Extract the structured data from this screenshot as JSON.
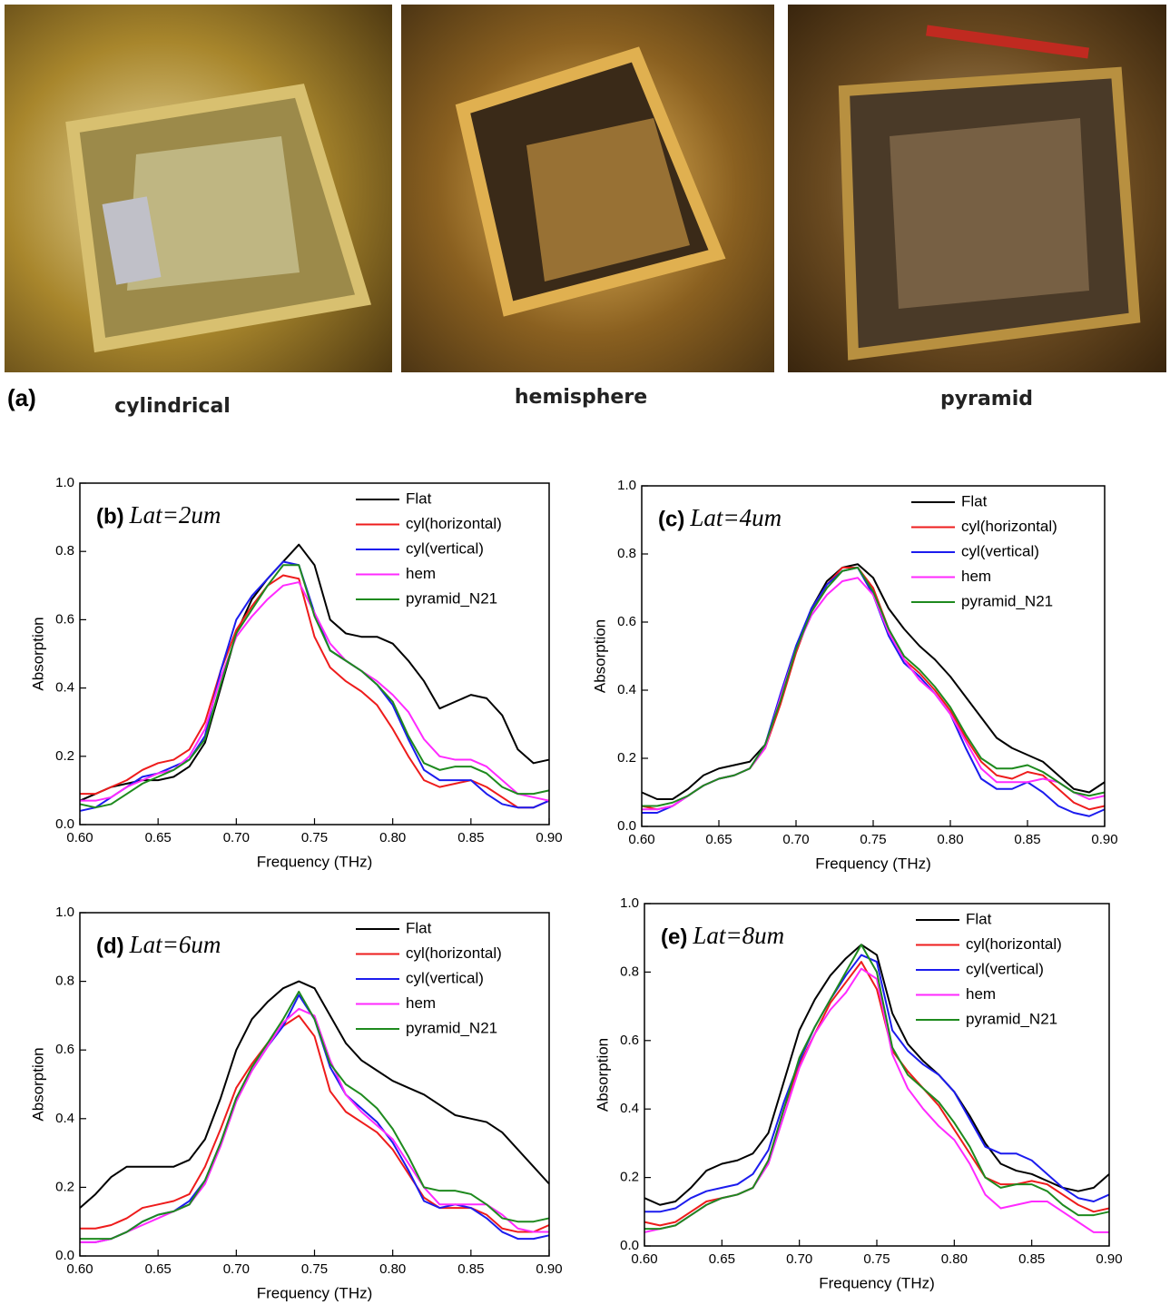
{
  "panel_a": {
    "label": "(a)",
    "captions": [
      "cylindrical",
      "hemisphere",
      "pyramid"
    ]
  },
  "chart_data": [
    {
      "type": "line",
      "panel_label": "(b)",
      "title": "Lat=2um",
      "xlabel": "Frequency (THz)",
      "ylabel": "Absorption",
      "xlim": [
        0.6,
        0.9
      ],
      "ylim": [
        0,
        1
      ],
      "legend": "upper right",
      "xticks": [
        {
          "value": 0.6,
          "label": "0.60"
        },
        0.65,
        {
          "value": 0.7,
          "label": "0.70"
        },
        0.75,
        {
          "value": 0.8,
          "label": "0.80"
        },
        0.85,
        {
          "value": 0.9,
          "label": "0.90"
        }
      ],
      "yticks": [
        {
          "value": 0,
          "label": "0.0"
        },
        0.2,
        0.4,
        0.6,
        0.8,
        {
          "value": 1,
          "label": "1.0"
        }
      ],
      "x": [
        0.6,
        0.61,
        0.62,
        0.63,
        0.64,
        0.65,
        0.66,
        0.67,
        0.68,
        0.69,
        0.7,
        0.71,
        0.72,
        0.73,
        0.74,
        0.75,
        0.76,
        0.77,
        0.78,
        0.79,
        0.8,
        0.81,
        0.82,
        0.83,
        0.84,
        0.85,
        0.86,
        0.87,
        0.88,
        0.89,
        0.9
      ],
      "series": [
        {
          "name": "Flat",
          "color": "#000000",
          "values": [
            0.07,
            0.09,
            0.11,
            0.12,
            0.13,
            0.13,
            0.14,
            0.17,
            0.24,
            0.4,
            0.56,
            0.66,
            0.72,
            0.77,
            0.82,
            0.76,
            0.6,
            0.56,
            0.55,
            0.55,
            0.53,
            0.48,
            0.42,
            0.34,
            0.36,
            0.38,
            0.37,
            0.32,
            0.22,
            0.18,
            0.19
          ]
        },
        {
          "name": "cyl(horizontal)",
          "color": "#ee1c1c",
          "values": [
            0.09,
            0.09,
            0.11,
            0.13,
            0.16,
            0.18,
            0.19,
            0.22,
            0.3,
            0.45,
            0.57,
            0.64,
            0.7,
            0.73,
            0.72,
            0.55,
            0.46,
            0.42,
            0.39,
            0.35,
            0.28,
            0.2,
            0.13,
            0.11,
            0.12,
            0.13,
            0.11,
            0.08,
            0.05,
            0.05,
            0.07
          ]
        },
        {
          "name": "cyl(vertical)",
          "color": "#1c1cee",
          "values": [
            0.04,
            0.05,
            0.08,
            0.11,
            0.14,
            0.15,
            0.17,
            0.19,
            0.26,
            0.45,
            0.6,
            0.67,
            0.72,
            0.77,
            0.76,
            0.62,
            0.51,
            0.48,
            0.45,
            0.41,
            0.35,
            0.25,
            0.16,
            0.13,
            0.13,
            0.13,
            0.09,
            0.06,
            0.05,
            0.05,
            0.07
          ]
        },
        {
          "name": "hem",
          "color": "#ff2aff",
          "values": [
            0.07,
            0.07,
            0.08,
            0.11,
            0.13,
            0.15,
            0.16,
            0.2,
            0.28,
            0.43,
            0.55,
            0.61,
            0.66,
            0.7,
            0.71,
            0.62,
            0.53,
            0.48,
            0.45,
            0.42,
            0.38,
            0.33,
            0.25,
            0.2,
            0.19,
            0.19,
            0.17,
            0.13,
            0.09,
            0.08,
            0.07
          ]
        },
        {
          "name": "pyramid_N21",
          "color": "#1e8a1e",
          "values": [
            0.06,
            0.05,
            0.06,
            0.09,
            0.12,
            0.14,
            0.16,
            0.19,
            0.25,
            0.41,
            0.56,
            0.63,
            0.7,
            0.76,
            0.76,
            0.61,
            0.51,
            0.48,
            0.45,
            0.41,
            0.36,
            0.26,
            0.18,
            0.16,
            0.17,
            0.17,
            0.15,
            0.11,
            0.09,
            0.09,
            0.1
          ]
        }
      ]
    },
    {
      "type": "line",
      "panel_label": "(c)",
      "title": "Lat=4um",
      "xlabel": "Frequency (THz)",
      "ylabel": "Absorption",
      "xlim": [
        0.6,
        0.9
      ],
      "ylim": [
        0,
        1
      ],
      "legend": "upper right",
      "xticks": [
        {
          "value": 0.6,
          "label": "0.60"
        },
        0.65,
        {
          "value": 0.7,
          "label": "0.70"
        },
        0.75,
        {
          "value": 0.8,
          "label": "0.80"
        },
        0.85,
        {
          "value": 0.9,
          "label": "0.90"
        }
      ],
      "yticks": [
        {
          "value": 0,
          "label": "0.0"
        },
        0.2,
        0.4,
        0.6,
        0.8,
        {
          "value": 1,
          "label": "1.0"
        }
      ],
      "x": [
        0.6,
        0.61,
        0.62,
        0.63,
        0.64,
        0.65,
        0.66,
        0.67,
        0.68,
        0.69,
        0.7,
        0.71,
        0.72,
        0.73,
        0.74,
        0.75,
        0.76,
        0.77,
        0.78,
        0.79,
        0.8,
        0.81,
        0.82,
        0.83,
        0.84,
        0.85,
        0.86,
        0.87,
        0.88,
        0.89,
        0.9
      ],
      "series": [
        {
          "name": "Flat",
          "color": "#000000",
          "values": [
            0.1,
            0.08,
            0.08,
            0.11,
            0.15,
            0.17,
            0.18,
            0.19,
            0.24,
            0.37,
            0.52,
            0.64,
            0.72,
            0.76,
            0.77,
            0.73,
            0.64,
            0.58,
            0.53,
            0.49,
            0.44,
            0.38,
            0.32,
            0.26,
            0.23,
            0.21,
            0.19,
            0.15,
            0.11,
            0.1,
            0.13
          ]
        },
        {
          "name": "cyl(horizontal)",
          "color": "#ee1c1c",
          "values": [
            0.06,
            0.05,
            0.06,
            0.09,
            0.12,
            0.14,
            0.15,
            0.17,
            0.23,
            0.36,
            0.51,
            0.63,
            0.71,
            0.76,
            0.76,
            0.7,
            0.58,
            0.49,
            0.45,
            0.4,
            0.34,
            0.26,
            0.19,
            0.15,
            0.14,
            0.16,
            0.15,
            0.11,
            0.07,
            0.05,
            0.06
          ]
        },
        {
          "name": "cyl(vertical)",
          "color": "#1c1cee",
          "values": [
            0.04,
            0.04,
            0.06,
            0.09,
            0.12,
            0.14,
            0.15,
            0.17,
            0.24,
            0.39,
            0.53,
            0.64,
            0.71,
            0.75,
            0.76,
            0.68,
            0.56,
            0.48,
            0.44,
            0.39,
            0.33,
            0.23,
            0.14,
            0.11,
            0.11,
            0.13,
            0.1,
            0.06,
            0.04,
            0.03,
            0.05
          ]
        },
        {
          "name": "hem",
          "color": "#ff2aff",
          "values": [
            0.05,
            0.05,
            0.06,
            0.09,
            0.12,
            0.14,
            0.15,
            0.17,
            0.23,
            0.38,
            0.52,
            0.62,
            0.68,
            0.72,
            0.73,
            0.68,
            0.57,
            0.49,
            0.43,
            0.39,
            0.33,
            0.25,
            0.17,
            0.13,
            0.13,
            0.13,
            0.14,
            0.13,
            0.1,
            0.08,
            0.09
          ]
        },
        {
          "name": "pyramid_N21",
          "color": "#1e8a1e",
          "values": [
            0.06,
            0.06,
            0.07,
            0.09,
            0.12,
            0.14,
            0.15,
            0.17,
            0.24,
            0.37,
            0.52,
            0.63,
            0.7,
            0.75,
            0.76,
            0.69,
            0.58,
            0.5,
            0.46,
            0.41,
            0.35,
            0.27,
            0.2,
            0.17,
            0.17,
            0.18,
            0.16,
            0.13,
            0.1,
            0.09,
            0.1
          ]
        }
      ]
    },
    {
      "type": "line",
      "panel_label": "(d)",
      "title": "Lat=6um",
      "xlabel": "Frequency (THz)",
      "ylabel": "Absorption",
      "xlim": [
        0.6,
        0.9
      ],
      "ylim": [
        0,
        1
      ],
      "legend": "upper right",
      "xticks": [
        {
          "value": 0.6,
          "label": "0.60"
        },
        0.65,
        {
          "value": 0.7,
          "label": "0.70"
        },
        0.75,
        {
          "value": 0.8,
          "label": "0.80"
        },
        0.85,
        {
          "value": 0.9,
          "label": "0.90"
        }
      ],
      "yticks": [
        {
          "value": 0,
          "label": "0.0"
        },
        0.2,
        0.4,
        0.6,
        0.8,
        {
          "value": 1,
          "label": "1.0"
        }
      ],
      "x": [
        0.6,
        0.61,
        0.62,
        0.63,
        0.64,
        0.65,
        0.66,
        0.67,
        0.68,
        0.69,
        0.7,
        0.71,
        0.72,
        0.73,
        0.74,
        0.75,
        0.76,
        0.77,
        0.78,
        0.79,
        0.8,
        0.81,
        0.82,
        0.83,
        0.84,
        0.85,
        0.86,
        0.87,
        0.88,
        0.89,
        0.9
      ],
      "series": [
        {
          "name": "Flat",
          "color": "#000000",
          "values": [
            0.14,
            0.18,
            0.23,
            0.26,
            0.26,
            0.26,
            0.26,
            0.28,
            0.34,
            0.46,
            0.6,
            0.69,
            0.74,
            0.78,
            0.8,
            0.78,
            0.7,
            0.62,
            0.57,
            0.54,
            0.51,
            0.49,
            0.47,
            0.44,
            0.41,
            0.4,
            0.39,
            0.36,
            0.31,
            0.26,
            0.21
          ]
        },
        {
          "name": "cyl(horizontal)",
          "color": "#ee1c1c",
          "values": [
            0.08,
            0.08,
            0.09,
            0.11,
            0.14,
            0.15,
            0.16,
            0.18,
            0.26,
            0.37,
            0.49,
            0.56,
            0.62,
            0.67,
            0.7,
            0.64,
            0.48,
            0.42,
            0.39,
            0.36,
            0.31,
            0.24,
            0.17,
            0.14,
            0.14,
            0.14,
            0.12,
            0.08,
            0.07,
            0.07,
            0.09
          ]
        },
        {
          "name": "cyl(vertical)",
          "color": "#1c1cee",
          "values": [
            0.04,
            0.04,
            0.05,
            0.07,
            0.1,
            0.12,
            0.13,
            0.16,
            0.22,
            0.33,
            0.46,
            0.54,
            0.61,
            0.67,
            0.76,
            0.69,
            0.55,
            0.47,
            0.43,
            0.39,
            0.33,
            0.25,
            0.16,
            0.14,
            0.15,
            0.14,
            0.11,
            0.07,
            0.05,
            0.05,
            0.06
          ]
        },
        {
          "name": "hem",
          "color": "#ff2aff",
          "values": [
            0.04,
            0.04,
            0.05,
            0.07,
            0.09,
            0.11,
            0.13,
            0.15,
            0.21,
            0.32,
            0.45,
            0.54,
            0.61,
            0.68,
            0.72,
            0.7,
            0.57,
            0.47,
            0.42,
            0.38,
            0.34,
            0.27,
            0.2,
            0.15,
            0.15,
            0.15,
            0.15,
            0.12,
            0.08,
            0.07,
            0.07
          ]
        },
        {
          "name": "pyramid_N21",
          "color": "#1e8a1e",
          "values": [
            0.05,
            0.05,
            0.05,
            0.07,
            0.1,
            0.12,
            0.13,
            0.15,
            0.22,
            0.33,
            0.46,
            0.55,
            0.62,
            0.69,
            0.77,
            0.69,
            0.56,
            0.5,
            0.47,
            0.43,
            0.37,
            0.29,
            0.2,
            0.19,
            0.19,
            0.18,
            0.15,
            0.11,
            0.1,
            0.1,
            0.11
          ]
        }
      ]
    },
    {
      "type": "line",
      "panel_label": "(e)",
      "title": "Lat=8um",
      "xlabel": "Frequency (THz)",
      "ylabel": "Absorption",
      "xlim": [
        0.6,
        0.9
      ],
      "ylim": [
        0,
        1
      ],
      "legend": "upper right",
      "xticks": [
        {
          "value": 0.6,
          "label": "0.60"
        },
        0.65,
        {
          "value": 0.7,
          "label": "0.70"
        },
        0.75,
        {
          "value": 0.8,
          "label": "0.80"
        },
        0.85,
        {
          "value": 0.9,
          "label": "0.90"
        }
      ],
      "yticks": [
        {
          "value": 0,
          "label": "0.0"
        },
        0.2,
        0.4,
        0.6,
        0.8,
        {
          "value": 1,
          "label": "1.0"
        }
      ],
      "x": [
        0.6,
        0.61,
        0.62,
        0.63,
        0.64,
        0.65,
        0.66,
        0.67,
        0.68,
        0.69,
        0.7,
        0.71,
        0.72,
        0.73,
        0.74,
        0.75,
        0.76,
        0.77,
        0.78,
        0.79,
        0.8,
        0.81,
        0.82,
        0.83,
        0.84,
        0.85,
        0.86,
        0.87,
        0.88,
        0.89,
        0.9
      ],
      "series": [
        {
          "name": "Flat",
          "color": "#000000",
          "values": [
            0.14,
            0.12,
            0.13,
            0.17,
            0.22,
            0.24,
            0.25,
            0.27,
            0.33,
            0.48,
            0.63,
            0.72,
            0.79,
            0.84,
            0.88,
            0.85,
            0.68,
            0.59,
            0.54,
            0.5,
            0.45,
            0.38,
            0.3,
            0.24,
            0.22,
            0.21,
            0.19,
            0.17,
            0.16,
            0.17,
            0.21
          ]
        },
        {
          "name": "cyl(horizontal)",
          "color": "#ee1c1c",
          "values": [
            0.07,
            0.06,
            0.07,
            0.1,
            0.13,
            0.14,
            0.15,
            0.17,
            0.25,
            0.4,
            0.53,
            0.62,
            0.71,
            0.77,
            0.83,
            0.75,
            0.57,
            0.51,
            0.46,
            0.41,
            0.34,
            0.27,
            0.2,
            0.18,
            0.18,
            0.19,
            0.18,
            0.15,
            0.12,
            0.1,
            0.11
          ]
        },
        {
          "name": "cyl(vertical)",
          "color": "#1c1cee",
          "values": [
            0.1,
            0.1,
            0.11,
            0.14,
            0.16,
            0.17,
            0.18,
            0.21,
            0.28,
            0.42,
            0.54,
            0.64,
            0.72,
            0.79,
            0.85,
            0.83,
            0.63,
            0.57,
            0.53,
            0.5,
            0.45,
            0.37,
            0.29,
            0.27,
            0.27,
            0.25,
            0.21,
            0.17,
            0.14,
            0.13,
            0.15
          ]
        },
        {
          "name": "hem",
          "color": "#ff2aff",
          "values": [
            0.04,
            0.05,
            0.06,
            0.09,
            0.12,
            0.14,
            0.15,
            0.17,
            0.24,
            0.38,
            0.52,
            0.62,
            0.69,
            0.74,
            0.81,
            0.78,
            0.56,
            0.46,
            0.4,
            0.35,
            0.31,
            0.24,
            0.15,
            0.11,
            0.12,
            0.13,
            0.13,
            0.1,
            0.07,
            0.04,
            0.04
          ]
        },
        {
          "name": "pyramid_N21",
          "color": "#1e8a1e",
          "values": [
            0.05,
            0.05,
            0.06,
            0.09,
            0.12,
            0.14,
            0.15,
            0.17,
            0.25,
            0.4,
            0.55,
            0.64,
            0.72,
            0.8,
            0.88,
            0.8,
            0.58,
            0.5,
            0.46,
            0.42,
            0.36,
            0.29,
            0.2,
            0.17,
            0.18,
            0.18,
            0.16,
            0.12,
            0.09,
            0.09,
            0.1
          ]
        }
      ]
    }
  ]
}
